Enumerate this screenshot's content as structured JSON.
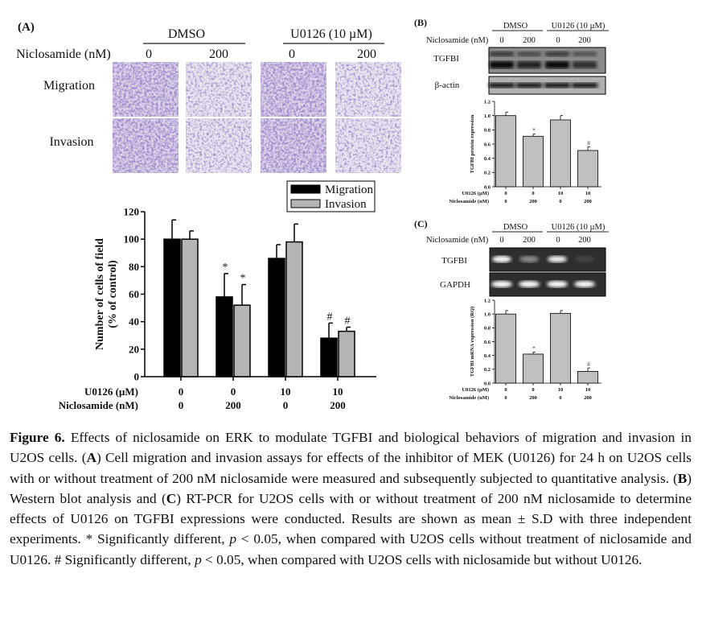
{
  "panel_a": {
    "label": "(A)",
    "header_groups": [
      "DMSO",
      "U0126 (10 µM)"
    ],
    "niclosamide_label": "Niclosamide (nM)",
    "niclosamide_values": [
      "0",
      "200",
      "0",
      "200"
    ],
    "row_labels": [
      "Migration",
      "Invasion"
    ]
  },
  "panel_b": {
    "label": "(B)",
    "header_groups": [
      "DMSO",
      "U0126 (10 µM)"
    ],
    "niclosamide_label": "Niclosamide (nM)",
    "niclosamide_values": [
      "0",
      "200",
      "0",
      "200"
    ],
    "blot_labels": [
      "TGFBI",
      "β-actin"
    ]
  },
  "panel_c": {
    "label": "(C)",
    "header_groups": [
      "DMSO",
      "U0126 (10 µM)"
    ],
    "niclosamide_label": "Niclosamide (nM)",
    "niclosamide_values": [
      "0",
      "200",
      "0",
      "200"
    ],
    "gel_labels": [
      "TGFBI",
      "GAPDH"
    ]
  },
  "chart_data": [
    {
      "id": "A",
      "type": "bar",
      "title": "",
      "ylabel": [
        "Number of cells of field",
        "(% of control)"
      ],
      "ylim": [
        0,
        120
      ],
      "yticks": [
        0,
        20,
        40,
        60,
        80,
        100,
        120
      ],
      "condition_rows": [
        {
          "label": "U0126 (µM)",
          "values": [
            "0",
            "0",
            "10",
            "10"
          ]
        },
        {
          "label": "Niclosamide (nM)",
          "values": [
            "0",
            "200",
            "0",
            "200"
          ]
        }
      ],
      "legend": {
        "placement": "top-right",
        "entries": [
          "Migration",
          "Invasion"
        ]
      },
      "series": [
        {
          "name": "Migration",
          "color": "#000000",
          "values": [
            100,
            58,
            86,
            28
          ],
          "errors": [
            14,
            17,
            10,
            11
          ],
          "annotations": [
            "",
            "*",
            "",
            "#"
          ]
        },
        {
          "name": "Invasion",
          "color": "#b4b4b4",
          "values": [
            100,
            52,
            98,
            33
          ],
          "errors": [
            6,
            15,
            13,
            3
          ],
          "annotations": [
            "",
            "*",
            "",
            "#"
          ]
        }
      ]
    },
    {
      "id": "B",
      "type": "bar",
      "ylabel": [
        "TGFBI protein expression"
      ],
      "ylim": [
        0,
        1.2
      ],
      "yticks": [
        "0.0",
        "0.2",
        "0.4",
        "0.6",
        "0.8",
        "1.0",
        "1.2"
      ],
      "condition_rows": [
        {
          "label": "U0126 (µM)",
          "values": [
            "0",
            "0",
            "10",
            "10"
          ]
        },
        {
          "label": "Niclosamide (nM)",
          "values": [
            "0",
            "200",
            "0",
            "200"
          ]
        }
      ],
      "series": [
        {
          "name": "TGFBI",
          "color": "#c0c0c0",
          "values": [
            1.0,
            0.71,
            0.94,
            0.51
          ],
          "errors": [
            0.05,
            0.03,
            0.06,
            0.05
          ],
          "annotations": [
            "",
            "*",
            "",
            "#"
          ]
        }
      ]
    },
    {
      "id": "C",
      "type": "bar",
      "ylabel": [
        "TGFBI mRNA expression (RQ)"
      ],
      "ylim": [
        0,
        1.2
      ],
      "yticks": [
        "0.0",
        "0.2",
        "0.4",
        "0.6",
        "0.8",
        "1.0",
        "1.2"
      ],
      "condition_rows": [
        {
          "label": "U0126 (µM)",
          "values": [
            "0",
            "0",
            "10",
            "10"
          ]
        },
        {
          "label": "Niclosamide (nM)",
          "values": [
            "0",
            "200",
            "0",
            "200"
          ]
        }
      ],
      "series": [
        {
          "name": "TGFBI",
          "color": "#c0c0c0",
          "values": [
            1.0,
            0.42,
            1.01,
            0.17
          ],
          "errors": [
            0.05,
            0.03,
            0.04,
            0.05
          ],
          "annotations": [
            "",
            "*",
            "",
            "#"
          ]
        }
      ]
    }
  ],
  "caption": [
    {
      "text": "Figure 6.",
      "bold": true
    },
    {
      "text": " Effects of niclosamide on ERK to modulate TGFBI and biological behaviors of migration and invasion in U2OS cells. (",
      "bold": false
    },
    {
      "text": "A",
      "bold": true
    },
    {
      "text": ") Cell migration and invasion assays for effects of the inhibitor of MEK (U0126) for 24 h on U2OS cells with or without treatment of 200 nM niclosamide were measured and subsequently subjected to quantitative analysis. (",
      "bold": false
    },
    {
      "text": "B",
      "bold": true
    },
    {
      "text": ") Western blot analysis and (",
      "bold": false
    },
    {
      "text": "C",
      "bold": true
    },
    {
      "text": ") RT-PCR for U2OS cells with or without treatment of 200 nM niclosamide to determine effects of U0126 on TGFBI expressions were conducted. Results are shown as mean ± S.D with three independent experiments. * Significantly different, ",
      "bold": false
    },
    {
      "text": "p",
      "italic": true
    },
    {
      "text": " < 0.05, when compared with U2OS cells without treatment of niclosamide and U0126. # Significantly different, ",
      "bold": false
    },
    {
      "text": "p",
      "italic": true
    },
    {
      "text": " < 0.05, when compared with U2OS cells with niclosamide but without U0126.",
      "bold": false
    }
  ]
}
